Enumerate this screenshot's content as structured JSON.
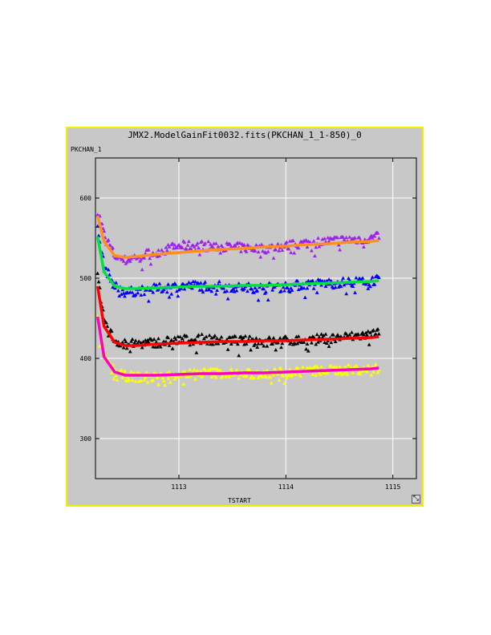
{
  "chart_data": {
    "type": "scatter",
    "title": "JMX2.ModelGainFit0032.fits(PKCHAN_1_1-850)_0",
    "xlabel": "TSTART",
    "ylabel": "PKCHAN_1",
    "xlim": [
      1112.22,
      1115.22
    ],
    "ylim": [
      250,
      650
    ],
    "xticks": [
      1113,
      1114,
      1115
    ],
    "yticks": [
      300,
      400,
      500,
      600
    ],
    "grid": true,
    "plot_bg": "#c8c8c8",
    "series": [
      {
        "kind": "points",
        "marker": "triangle",
        "color": "#a020f0",
        "x": [
          1112.24,
          1112.3,
          1112.4,
          1112.5,
          1112.6,
          1112.8,
          1113.0,
          1113.2,
          1113.4,
          1113.6,
          1113.8,
          1114.0,
          1114.2,
          1114.4,
          1114.6,
          1114.8,
          1114.87
        ],
        "y": [
          585,
          555,
          528,
          522,
          527,
          533,
          540,
          541,
          539,
          538,
          537,
          540,
          544,
          546,
          548,
          550,
          552
        ]
      },
      {
        "kind": "fit",
        "color": "#ff9020",
        "x": [
          1112.24,
          1112.3,
          1112.4,
          1112.5,
          1112.6,
          1112.8,
          1113.0,
          1113.2,
          1113.4,
          1113.6,
          1113.8,
          1114.0,
          1114.2,
          1114.4,
          1114.6,
          1114.8,
          1114.87
        ],
        "y": [
          578,
          546,
          528,
          526,
          527,
          530,
          532,
          534,
          536,
          537,
          539,
          540,
          542,
          543,
          545,
          546,
          547
        ]
      },
      {
        "kind": "points",
        "marker": "triangle",
        "color": "#0000ff",
        "x": [
          1112.24,
          1112.3,
          1112.4,
          1112.5,
          1112.6,
          1112.8,
          1113.0,
          1113.2,
          1113.4,
          1113.6,
          1113.8,
          1114.0,
          1114.2,
          1114.4,
          1114.6,
          1114.8,
          1114.87
        ],
        "y": [
          560,
          515,
          490,
          482,
          484,
          487,
          490,
          491,
          490,
          488,
          488,
          490,
          492,
          494,
          495,
          497,
          498
        ]
      },
      {
        "kind": "fit",
        "color": "#00e040",
        "x": [
          1112.24,
          1112.3,
          1112.4,
          1112.5,
          1112.6,
          1112.8,
          1113.0,
          1113.2,
          1113.4,
          1113.6,
          1113.8,
          1114.0,
          1114.2,
          1114.4,
          1114.6,
          1114.8,
          1114.87
        ],
        "y": [
          552,
          508,
          490,
          487,
          487,
          488,
          489,
          490,
          490,
          491,
          491,
          492,
          493,
          494,
          495,
          496,
          497
        ]
      },
      {
        "kind": "points",
        "marker": "triangle",
        "color": "#000000",
        "x": [
          1112.24,
          1112.3,
          1112.4,
          1112.5,
          1112.6,
          1112.8,
          1113.0,
          1113.2,
          1113.4,
          1113.6,
          1113.8,
          1114.0,
          1114.2,
          1114.4,
          1114.6,
          1114.8,
          1114.87
        ],
        "y": [
          500,
          448,
          422,
          418,
          418,
          420,
          423,
          424,
          423,
          422,
          421,
          422,
          423,
          425,
          427,
          430,
          432
        ]
      },
      {
        "kind": "fit",
        "color": "#ff0000",
        "x": [
          1112.24,
          1112.3,
          1112.4,
          1112.5,
          1112.6,
          1112.8,
          1113.0,
          1113.2,
          1113.4,
          1113.6,
          1113.8,
          1114.0,
          1114.2,
          1114.4,
          1114.6,
          1114.8,
          1114.87
        ],
        "y": [
          490,
          440,
          420,
          416,
          416,
          418,
          419,
          420,
          421,
          421,
          422,
          422,
          423,
          424,
          425,
          426,
          427
        ]
      },
      {
        "kind": "points",
        "marker": "triangle",
        "color": "#ffff00",
        "x": [
          1112.24,
          1112.3,
          1112.4,
          1112.5,
          1112.6,
          1112.8,
          1113.0,
          1113.2,
          1113.4,
          1113.6,
          1113.8,
          1114.0,
          1114.2,
          1114.4,
          1114.6,
          1114.8,
          1114.87
        ],
        "y": [
          448,
          405,
          382,
          378,
          377,
          377,
          380,
          382,
          382,
          380,
          381,
          383,
          384,
          385,
          386,
          387,
          387
        ]
      },
      {
        "kind": "fit",
        "color": "#ff00c0",
        "x": [
          1112.24,
          1112.3,
          1112.4,
          1112.5,
          1112.6,
          1112.8,
          1113.0,
          1113.2,
          1113.4,
          1113.6,
          1113.8,
          1114.0,
          1114.2,
          1114.4,
          1114.6,
          1114.8,
          1114.87
        ],
        "y": [
          452,
          402,
          383,
          379,
          379,
          379,
          380,
          381,
          381,
          382,
          382,
          383,
          384,
          385,
          386,
          387,
          388
        ]
      }
    ]
  },
  "ui": {
    "corner_button_glyph": "⤡"
  }
}
